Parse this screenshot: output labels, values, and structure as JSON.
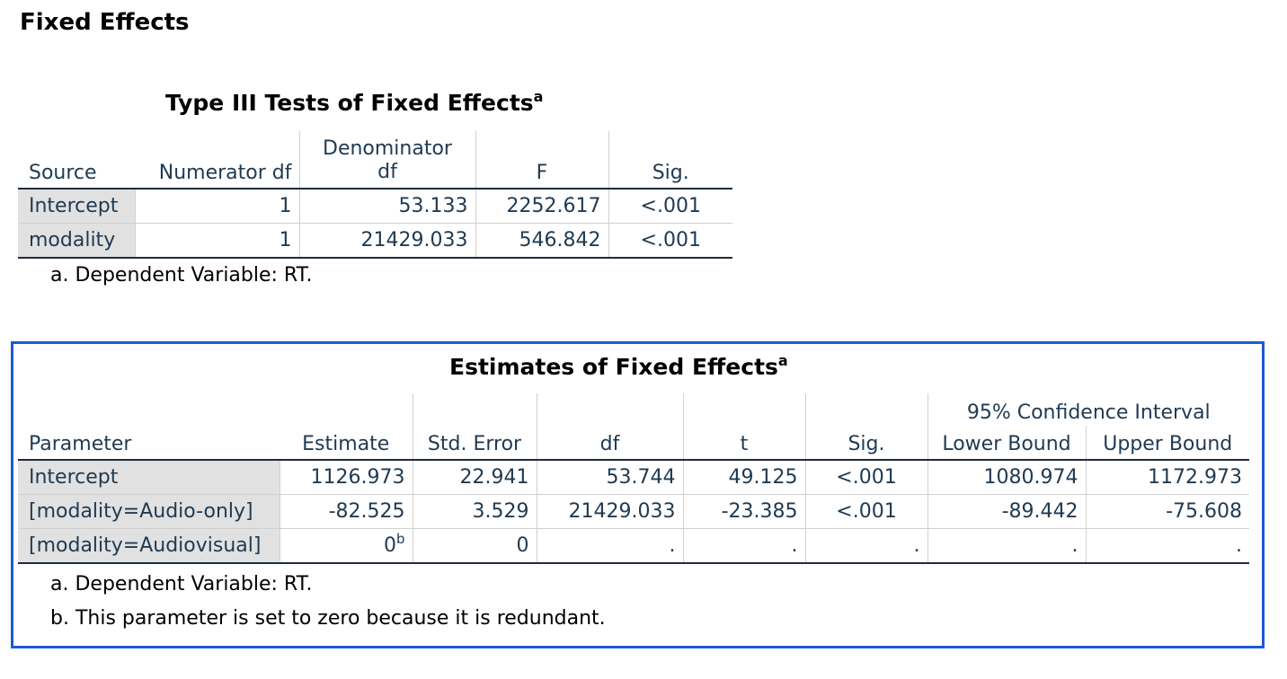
{
  "heading": "Fixed Effects",
  "type3": {
    "title": "Type III Tests of Fixed Effects",
    "title_sup": "a",
    "header_top": "Denominator",
    "columns": [
      "Source",
      "Numerator df",
      "df",
      "F",
      "Sig."
    ],
    "rows": [
      {
        "label": "Intercept",
        "cells": [
          "1",
          "53.133",
          "2252.617",
          "<.001"
        ]
      },
      {
        "label": "modality",
        "cells": [
          "1",
          "21429.033",
          "546.842",
          "<.001"
        ]
      }
    ],
    "footnotes": [
      "a. Dependent Variable: RT."
    ]
  },
  "estimates": {
    "title": "Estimates of Fixed Effects",
    "title_sup": "a",
    "ci_header": "95% Confidence Interval",
    "columns": [
      "Parameter",
      "Estimate",
      "Std. Error",
      "df",
      "t",
      "Sig.",
      "Lower Bound",
      "Upper Bound"
    ],
    "rows": [
      {
        "label": "Intercept",
        "cells": [
          "1126.973",
          "22.941",
          "53.744",
          "49.125",
          "<.001",
          "1080.974",
          "1172.973"
        ]
      },
      {
        "label": "[modality=Audio-only]",
        "cells": [
          "-82.525",
          "3.529",
          "21429.033",
          "-23.385",
          "<.001",
          "-89.442",
          "-75.608"
        ]
      },
      {
        "label": "[modality=Audiovisual]",
        "cells": [
          "0",
          "0",
          ".",
          ".",
          ".",
          ".",
          "."
        ],
        "estimate_sup": "b"
      }
    ],
    "footnotes": [
      "a. Dependent Variable: RT.",
      "b. This parameter is set to zero because it is redundant."
    ]
  }
}
